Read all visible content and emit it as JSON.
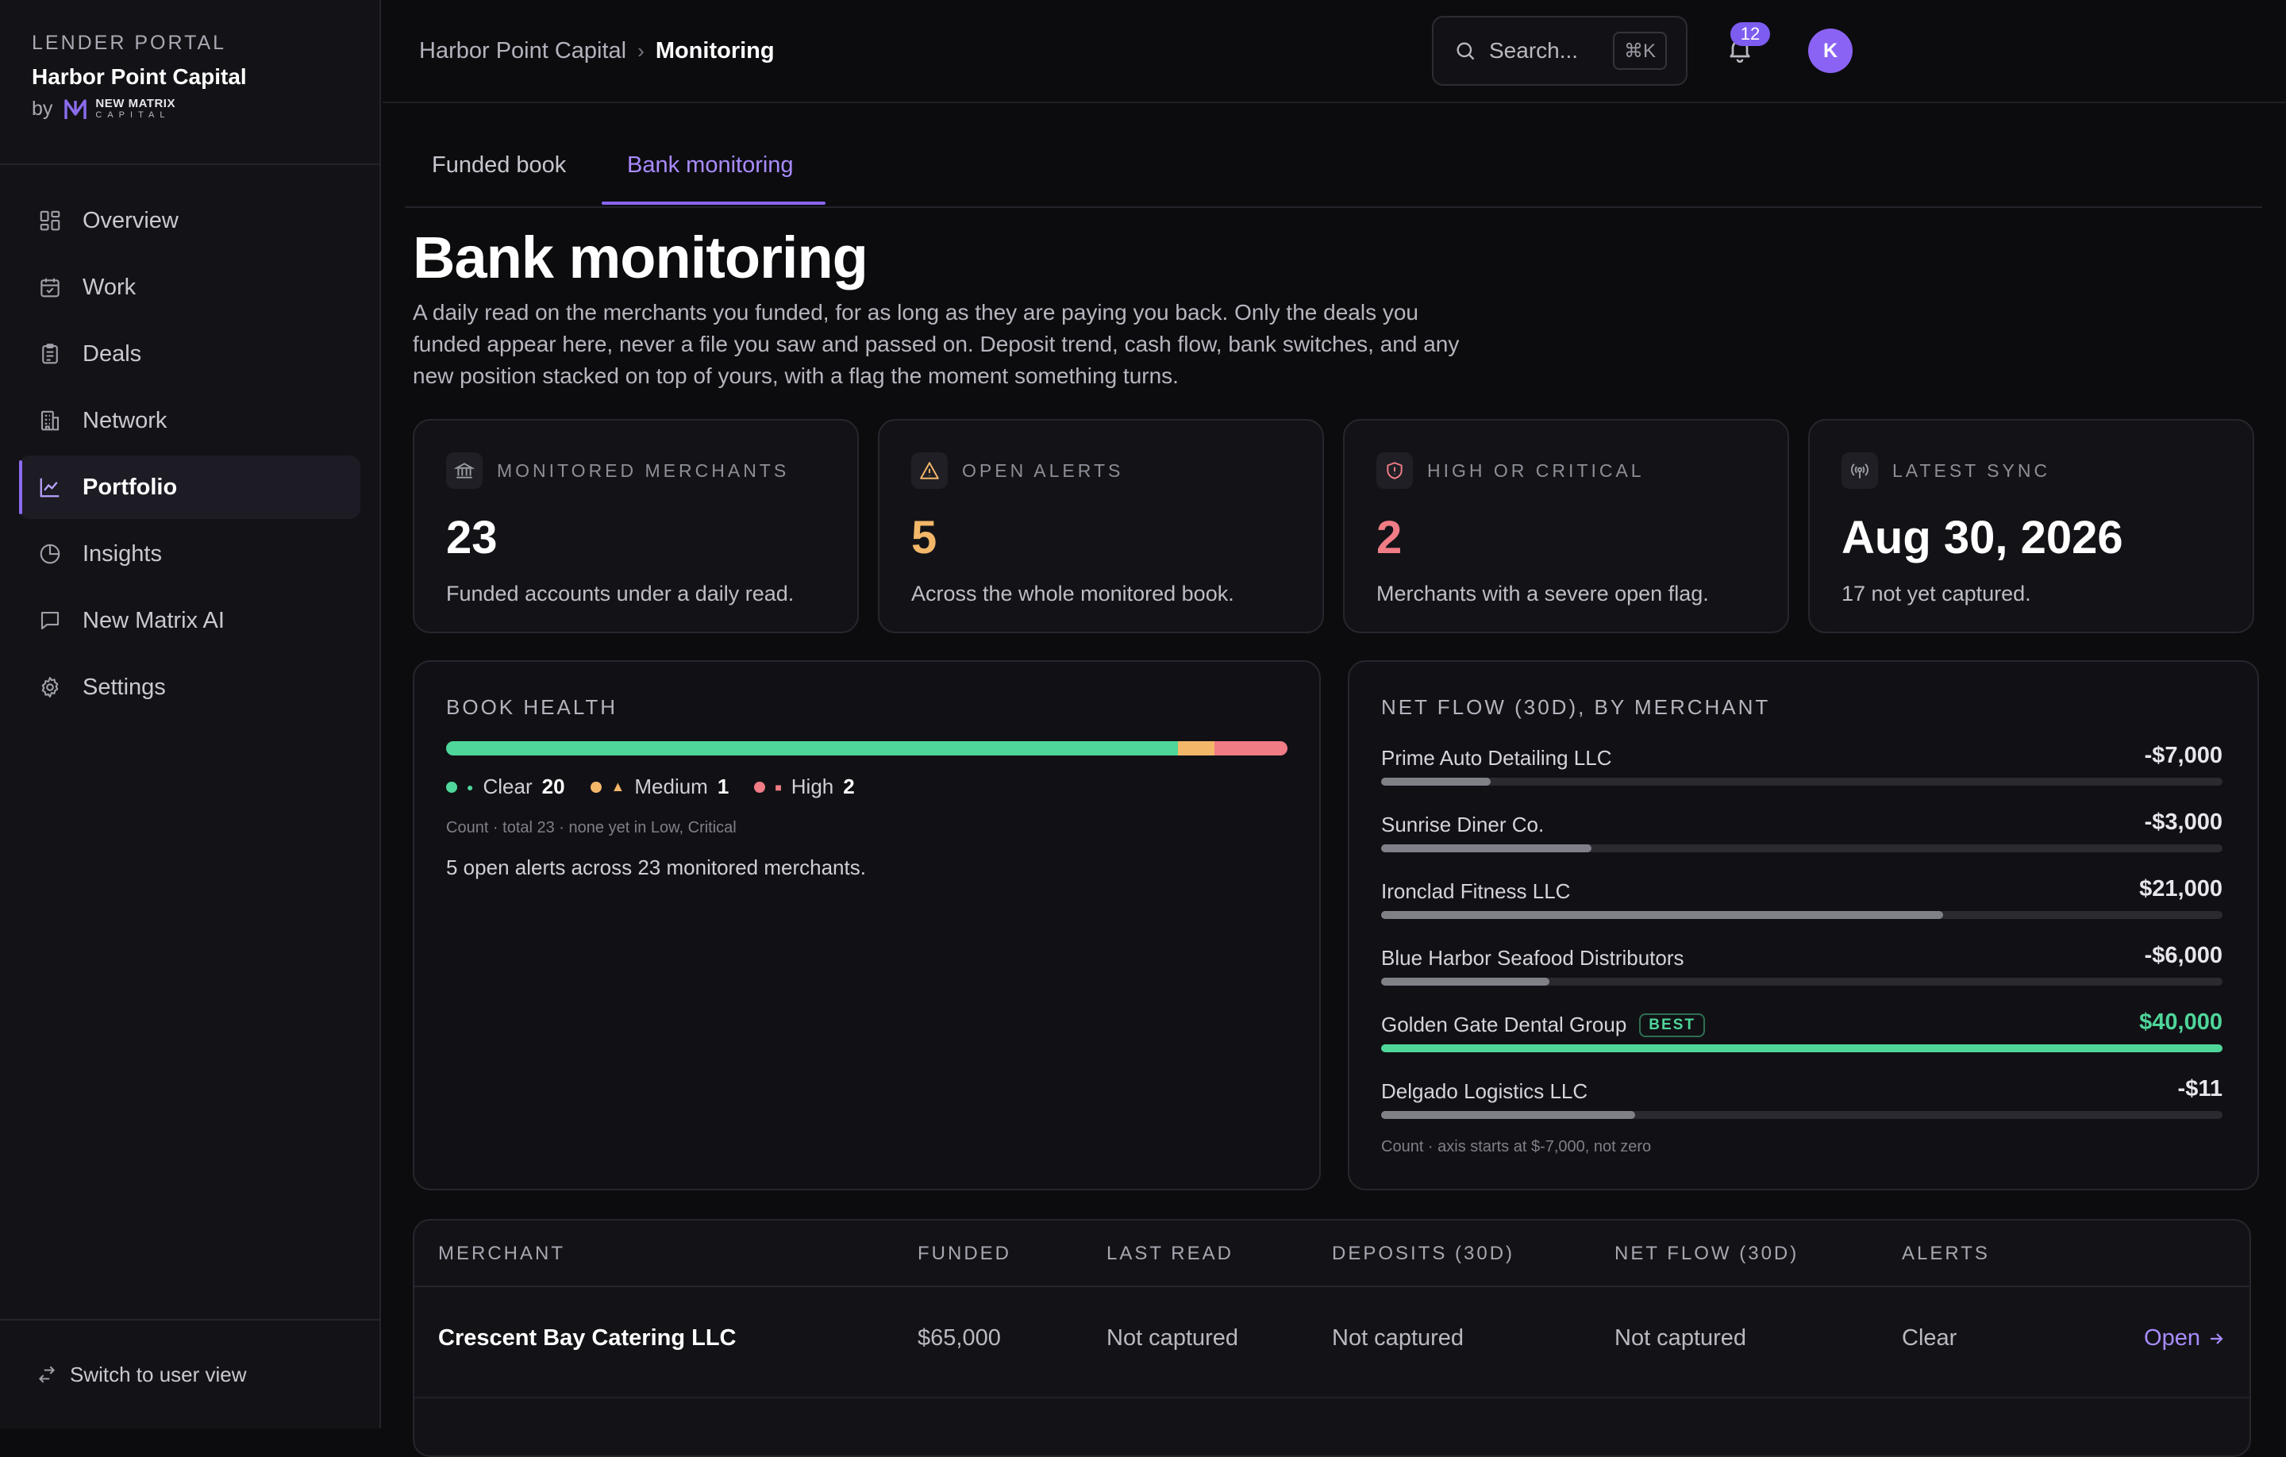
{
  "brand": {
    "kicker": "LENDER PORTAL",
    "name": "Harbor Point Capital",
    "by": "by",
    "logo_line1": "NEW MATRIX",
    "logo_line2": "CAPITAL"
  },
  "nav": {
    "items": [
      {
        "label": "Overview",
        "icon": "grid-icon"
      },
      {
        "label": "Work",
        "icon": "calendar-check-icon"
      },
      {
        "label": "Deals",
        "icon": "clipboard-icon"
      },
      {
        "label": "Network",
        "icon": "building-icon"
      },
      {
        "label": "Portfolio",
        "icon": "line-chart-icon",
        "active": true
      },
      {
        "label": "Insights",
        "icon": "pie-chart-icon"
      },
      {
        "label": "New Matrix AI",
        "icon": "chat-icon"
      },
      {
        "label": "Settings",
        "icon": "gear-icon"
      }
    ],
    "switch_label": "Switch to user view"
  },
  "topbar": {
    "crumb_root": "Harbor Point Capital",
    "crumb_sep": "›",
    "crumb_current": "Monitoring",
    "search_placeholder": "Search...",
    "search_shortcut": "⌘K",
    "notification_count": "12",
    "avatar_initial": "K"
  },
  "tabs": {
    "funded": "Funded book",
    "monitoring": "Bank monitoring"
  },
  "page": {
    "title": "Bank monitoring",
    "description": "A daily read on the merchants you funded, for as long as they are paying you back. Only the deals you funded appear here, never a file you saw and passed on. Deposit trend, cash flow, bank switches, and any new position stacked on top of yours, with a flag the moment something turns."
  },
  "stats": [
    {
      "label": "MONITORED MERCHANTS",
      "value": "23",
      "sub": "Funded accounts under a daily read.",
      "icon": "bank-icon",
      "color": "#ffffff"
    },
    {
      "label": "OPEN ALERTS",
      "value": "5",
      "sub": "Across the whole monitored book.",
      "icon": "warning-icon",
      "color": "#f3b76a"
    },
    {
      "label": "HIGH OR CRITICAL",
      "value": "2",
      "sub": "Merchants with a severe open flag.",
      "icon": "shield-alert-icon",
      "color": "#f07c86"
    },
    {
      "label": "LATEST SYNC",
      "value": "Aug 30, 2026",
      "sub": "17 not yet captured.",
      "icon": "broadcast-icon",
      "color": "#ffffff"
    }
  ],
  "book_health": {
    "title": "BOOK HEALTH",
    "segments": [
      {
        "label": "Clear",
        "count": 20,
        "color": "#4fd69a",
        "shape": "●"
      },
      {
        "label": "Medium",
        "count": 1,
        "color": "#f3b76a",
        "shape": "▲"
      },
      {
        "label": "High",
        "count": 2,
        "color": "#f07c86",
        "shape": "■"
      }
    ],
    "total": 23,
    "note": "Count · total 23 · none yet in Low, Critical",
    "summary": "5 open alerts across 23 monitored merchants."
  },
  "net_flow": {
    "title": "NET FLOW (30D), BY MERCHANT",
    "axis_min": -7000,
    "axis_max": 40000,
    "rows": [
      {
        "name": "Prime Auto Detailing LLC",
        "display": "-$7,000",
        "fill": 0.13,
        "best": false
      },
      {
        "name": "Sunrise Diner Co.",
        "display": "-$3,000",
        "fill": 0.25,
        "best": false
      },
      {
        "name": "Ironclad Fitness LLC",
        "display": "$21,000",
        "fill": 0.668,
        "best": false
      },
      {
        "name": "Blue Harbor Seafood Distributors",
        "display": "-$6,000",
        "fill": 0.2,
        "best": false
      },
      {
        "name": "Golden Gate Dental Group",
        "display": "$40,000",
        "fill": 1.0,
        "best": true
      },
      {
        "name": "Delgado Logistics LLC",
        "display": "-$11",
        "fill": 0.302,
        "best": false
      }
    ],
    "best_label": "BEST",
    "best_color": "#4fd69a",
    "note": "Count · axis starts at $-7,000, not zero"
  },
  "table": {
    "headers": [
      "MERCHANT",
      "FUNDED",
      "LAST READ",
      "DEPOSITS (30D)",
      "NET FLOW (30D)",
      "ALERTS"
    ],
    "rows": [
      {
        "merchant": "Crescent Bay Catering LLC",
        "funded": "$65,000",
        "last_read": "Not captured",
        "deposits": "Not captured",
        "net_flow": "Not captured",
        "alerts": "Clear",
        "action": "Open"
      }
    ]
  },
  "colors": {
    "accent": "#8b6cf0",
    "accent_text": "#a98bff",
    "clear": "#4fd69a",
    "medium": "#f3b76a",
    "high": "#f07c86"
  }
}
